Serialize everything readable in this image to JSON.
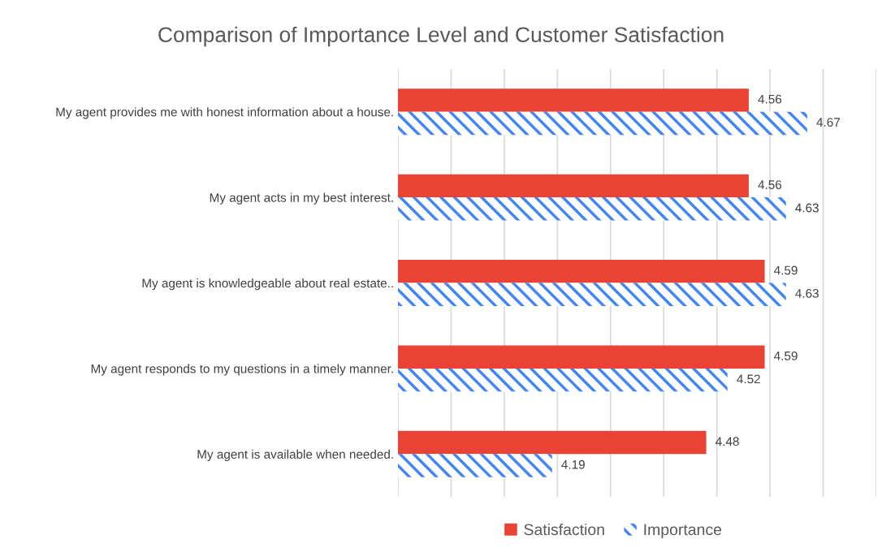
{
  "chart_data": {
    "type": "bar",
    "orientation": "horizontal",
    "title": "Comparison of Importance Level and Customer Satisfaction",
    "categories": [
      "My agent provides me with honest information about a house.",
      "My agent acts in my best interest.",
      "My agent is knowledgeable about real estate..",
      "My agent responds to my questions in a timely manner.",
      "My agent is available when needed."
    ],
    "series": [
      {
        "name": "Satisfaction",
        "color": "#ea4335",
        "values": [
          4.56,
          4.56,
          4.59,
          4.59,
          4.48
        ]
      },
      {
        "name": "Importance",
        "color": "#4285f4",
        "values": [
          4.67,
          4.63,
          4.63,
          4.52,
          4.19
        ]
      }
    ],
    "xlim": [
      3.9,
      4.8
    ],
    "xticks": [
      {
        "value": 3.9,
        "label": null
      },
      {
        "value": 4.0,
        "label": null
      },
      {
        "value": 4.1,
        "label": null
      },
      {
        "value": 4.2,
        "label": null
      },
      {
        "value": 4.3,
        "label": null
      },
      {
        "value": 4.4,
        "label": null
      },
      {
        "value": 4.5,
        "label": null
      },
      {
        "value": 4.6,
        "label": null
      },
      {
        "value": 4.7,
        "label": null
      },
      {
        "value": 4.8,
        "label": null
      }
    ],
    "grid": "x",
    "legend": "bottom",
    "data_labels": true
  }
}
